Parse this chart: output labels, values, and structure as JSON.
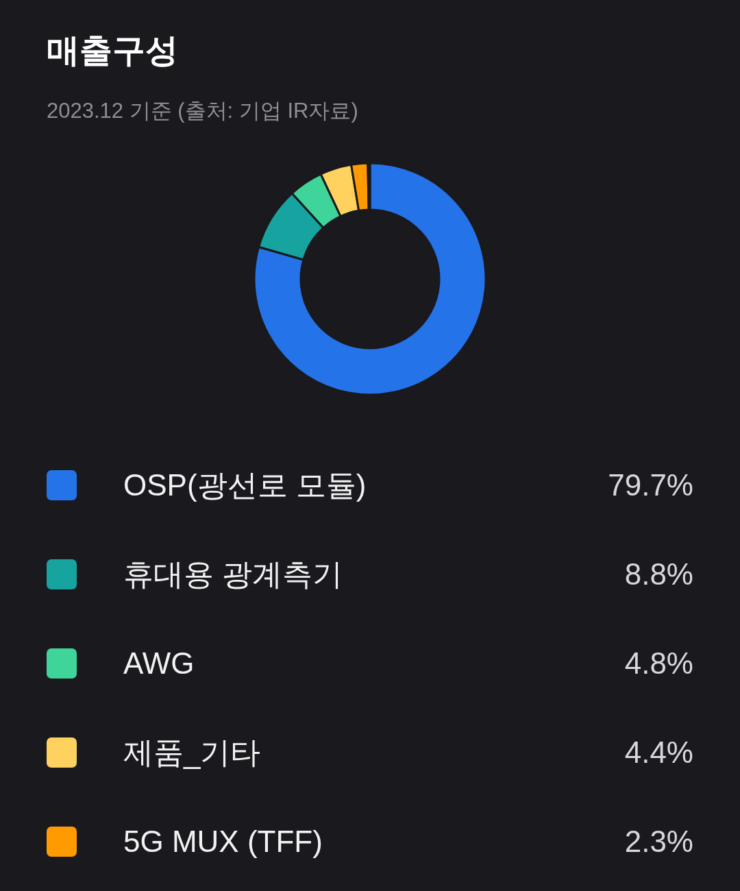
{
  "chart_data": {
    "type": "donut",
    "title": "매출구성",
    "subtitle": "2023.12 기준 (출처: 기업 IR자료)",
    "categories": [
      "OSP(광선로 모듈)",
      "휴대용 광계측기",
      "AWG",
      "제품_기타",
      "5G MUX (TFF)",
      null
    ],
    "values": [
      79.7,
      8.8,
      4.8,
      4.4,
      2.3,
      0.3
    ],
    "value_labels": [
      "79.7%",
      "8.8%",
      "4.8%",
      "4.4%",
      "2.3%",
      null
    ],
    "colors": [
      "#2473e8",
      "#17a3a0",
      "#3fd49a",
      "#ffd25f",
      "#ff9a00",
      "#3b3b42"
    ],
    "legend": "bottom"
  }
}
